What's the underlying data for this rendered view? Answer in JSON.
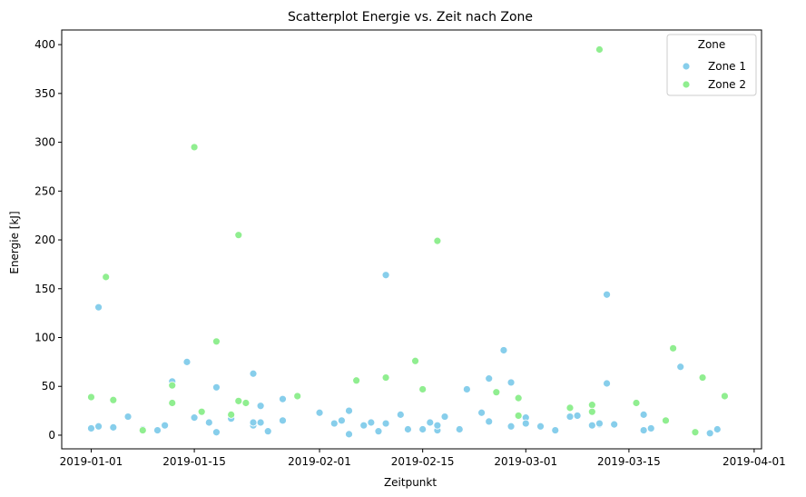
{
  "chart_data": {
    "type": "scatter",
    "title": "Scatterplot Energie vs. Zeit nach Zone",
    "xlabel": "Zeitpunkt",
    "ylabel": "Energie [kJ]",
    "xlim": [
      "2018-12-28",
      "2019-04-02"
    ],
    "ylim": [
      -14,
      415
    ],
    "x_ticks": [
      "2019-01-01",
      "2019-01-15",
      "2019-02-01",
      "2019-02-15",
      "2019-03-01",
      "2019-03-15",
      "2019-04-01"
    ],
    "y_ticks": [
      0,
      50,
      100,
      150,
      200,
      250,
      300,
      350,
      400
    ],
    "grid": false,
    "legend": {
      "title": "Zone",
      "position": "top-right"
    },
    "series": [
      {
        "name": "Zone 1",
        "color": "#87ceeb",
        "points": [
          {
            "x": "2019-01-01",
            "y": 7
          },
          {
            "x": "2019-01-02",
            "y": 9
          },
          {
            "x": "2019-01-02",
            "y": 131
          },
          {
            "x": "2019-01-04",
            "y": 8
          },
          {
            "x": "2019-01-06",
            "y": 19
          },
          {
            "x": "2019-01-08",
            "y": 6
          },
          {
            "x": "2019-01-10",
            "y": 5
          },
          {
            "x": "2019-01-11",
            "y": 10
          },
          {
            "x": "2019-01-12",
            "y": 55
          },
          {
            "x": "2019-01-14",
            "y": 75
          },
          {
            "x": "2019-01-15",
            "y": 18
          },
          {
            "x": "2019-01-17",
            "y": 13
          },
          {
            "x": "2019-01-18",
            "y": 49
          },
          {
            "x": "2019-01-18",
            "y": 3
          },
          {
            "x": "2019-01-20",
            "y": 17
          },
          {
            "x": "2019-01-23",
            "y": 10
          },
          {
            "x": "2019-01-23",
            "y": 13
          },
          {
            "x": "2019-01-23",
            "y": 63
          },
          {
            "x": "2019-01-24",
            "y": 30
          },
          {
            "x": "2019-01-24",
            "y": 13
          },
          {
            "x": "2019-01-25",
            "y": 4
          },
          {
            "x": "2019-01-27",
            "y": 37
          },
          {
            "x": "2019-01-27",
            "y": 15
          },
          {
            "x": "2019-02-01",
            "y": 23
          },
          {
            "x": "2019-02-03",
            "y": 12
          },
          {
            "x": "2019-02-04",
            "y": 15
          },
          {
            "x": "2019-02-05",
            "y": 25
          },
          {
            "x": "2019-02-05",
            "y": 1
          },
          {
            "x": "2019-02-07",
            "y": 10
          },
          {
            "x": "2019-02-08",
            "y": 13
          },
          {
            "x": "2019-02-09",
            "y": 4
          },
          {
            "x": "2019-02-10",
            "y": 12
          },
          {
            "x": "2019-02-10",
            "y": 164
          },
          {
            "x": "2019-02-12",
            "y": 21
          },
          {
            "x": "2019-02-13",
            "y": 6
          },
          {
            "x": "2019-02-15",
            "y": 6
          },
          {
            "x": "2019-02-16",
            "y": 13
          },
          {
            "x": "2019-02-17",
            "y": 5
          },
          {
            "x": "2019-02-17",
            "y": 10
          },
          {
            "x": "2019-02-18",
            "y": 19
          },
          {
            "x": "2019-02-20",
            "y": 6
          },
          {
            "x": "2019-02-21",
            "y": 47
          },
          {
            "x": "2019-02-23",
            "y": 23
          },
          {
            "x": "2019-02-24",
            "y": 58
          },
          {
            "x": "2019-02-24",
            "y": 14
          },
          {
            "x": "2019-02-26",
            "y": 87
          },
          {
            "x": "2019-02-27",
            "y": 54
          },
          {
            "x": "2019-02-27",
            "y": 9
          },
          {
            "x": "2019-03-01",
            "y": 18
          },
          {
            "x": "2019-03-01",
            "y": 12
          },
          {
            "x": "2019-03-03",
            "y": 9
          },
          {
            "x": "2019-03-05",
            "y": 5
          },
          {
            "x": "2019-03-07",
            "y": 19
          },
          {
            "x": "2019-03-08",
            "y": 20
          },
          {
            "x": "2019-03-10",
            "y": 10
          },
          {
            "x": "2019-03-11",
            "y": 11
          },
          {
            "x": "2019-03-11",
            "y": 12
          },
          {
            "x": "2019-03-12",
            "y": 53
          },
          {
            "x": "2019-03-12",
            "y": 144
          },
          {
            "x": "2019-03-13",
            "y": 11
          },
          {
            "x": "2019-03-17",
            "y": 21
          },
          {
            "x": "2019-03-17",
            "y": 5
          },
          {
            "x": "2019-03-18",
            "y": 7
          },
          {
            "x": "2019-03-22",
            "y": 70
          },
          {
            "x": "2019-03-26",
            "y": 2
          },
          {
            "x": "2019-03-26",
            "y": 2
          },
          {
            "x": "2019-03-27",
            "y": 6
          }
        ]
      },
      {
        "name": "Zone 2",
        "color": "#90ee90",
        "points": [
          {
            "x": "2019-01-01",
            "y": 39
          },
          {
            "x": "2019-01-03",
            "y": 162
          },
          {
            "x": "2019-01-04",
            "y": 36
          },
          {
            "x": "2019-01-08",
            "y": 5
          },
          {
            "x": "2019-01-12",
            "y": 51
          },
          {
            "x": "2019-01-12",
            "y": 33
          },
          {
            "x": "2019-01-15",
            "y": 295
          },
          {
            "x": "2019-01-16",
            "y": 24
          },
          {
            "x": "2019-01-18",
            "y": 96
          },
          {
            "x": "2019-01-20",
            "y": 21
          },
          {
            "x": "2019-01-21",
            "y": 35
          },
          {
            "x": "2019-01-21",
            "y": 205
          },
          {
            "x": "2019-01-22",
            "y": 33
          },
          {
            "x": "2019-01-29",
            "y": 40
          },
          {
            "x": "2019-02-06",
            "y": 56
          },
          {
            "x": "2019-02-10",
            "y": 59
          },
          {
            "x": "2019-02-14",
            "y": 76
          },
          {
            "x": "2019-02-15",
            "y": 47
          },
          {
            "x": "2019-02-17",
            "y": 199
          },
          {
            "x": "2019-02-25",
            "y": 44
          },
          {
            "x": "2019-02-28",
            "y": 20
          },
          {
            "x": "2019-02-28",
            "y": 38
          },
          {
            "x": "2019-03-07",
            "y": 28
          },
          {
            "x": "2019-03-10",
            "y": 31
          },
          {
            "x": "2019-03-10",
            "y": 24
          },
          {
            "x": "2019-03-11",
            "y": 395
          },
          {
            "x": "2019-03-16",
            "y": 33
          },
          {
            "x": "2019-03-20",
            "y": 15
          },
          {
            "x": "2019-03-21",
            "y": 89
          },
          {
            "x": "2019-03-24",
            "y": 3
          },
          {
            "x": "2019-03-25",
            "y": 59
          },
          {
            "x": "2019-03-28",
            "y": 40
          }
        ]
      }
    ]
  }
}
